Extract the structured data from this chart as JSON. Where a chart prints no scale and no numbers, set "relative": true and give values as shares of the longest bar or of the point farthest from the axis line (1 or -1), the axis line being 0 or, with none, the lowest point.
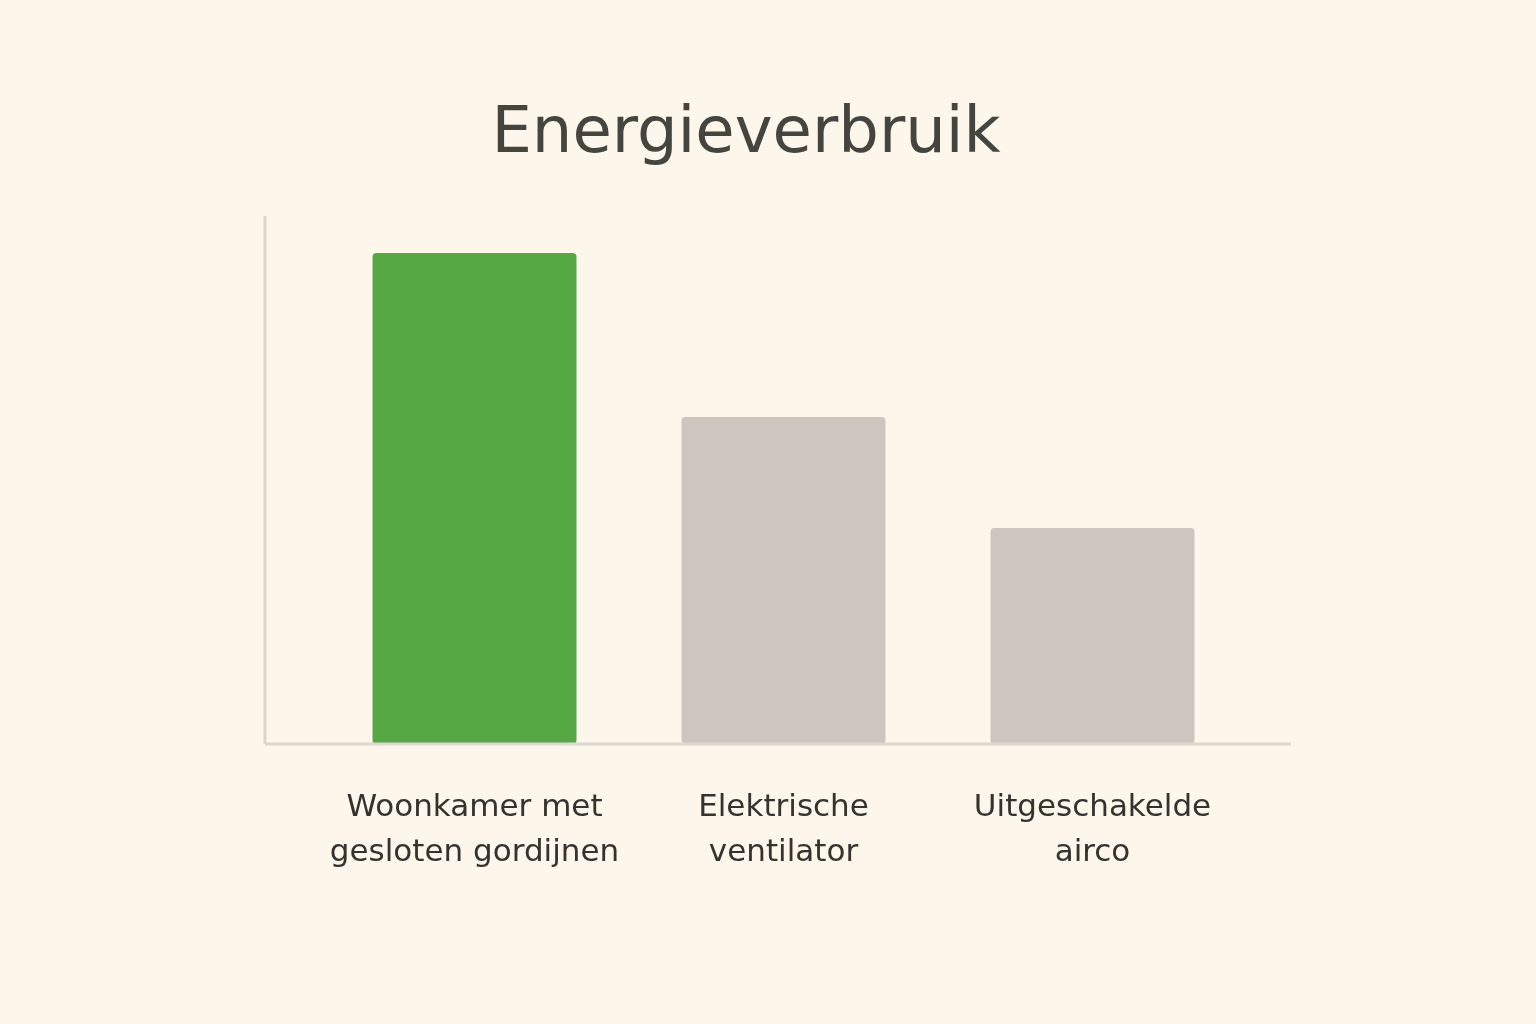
{
  "chart_data": {
    "type": "bar",
    "title": "Energieverbruik",
    "relative": true,
    "categories": [
      "Woonkamer met gesloten gordijnen",
      "Elektrische ventilator",
      "Uitgeschakelde airco"
    ],
    "values": [
      1,
      0.666,
      0.44
    ],
    "colors": [
      "#55a843",
      "#cdc6c0",
      "#cdc6c0"
    ]
  }
}
